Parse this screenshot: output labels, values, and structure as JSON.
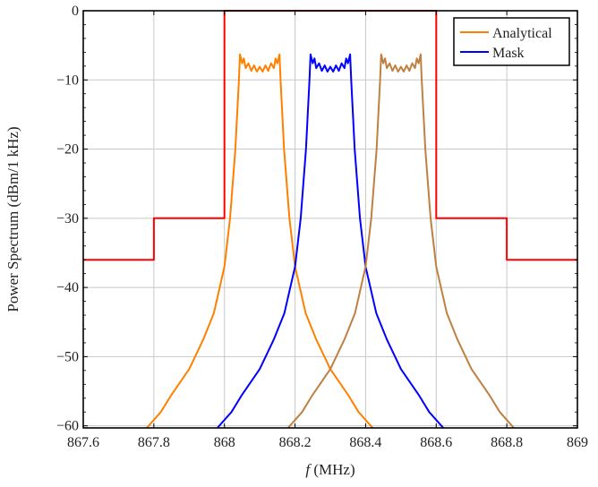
{
  "chart_data": {
    "type": "line",
    "title": "",
    "xlabel": "f (MHz)",
    "ylabel": "Power Spectrum (dBm/1 kHz)",
    "xlim": [
      867.6,
      869
    ],
    "ylim": [
      -60.3,
      0
    ],
    "xticks": [
      "867.6",
      "867.8",
      "868",
      "868.2",
      "868.4",
      "868.6",
      "868.8",
      "869"
    ],
    "xtick_values": [
      867.6,
      867.8,
      868,
      868.2,
      868.4,
      868.6,
      868.8,
      869
    ],
    "yticks": [
      "0",
      "−10",
      "−20",
      "−30",
      "−40",
      "−50",
      "−60"
    ],
    "ytick_values": [
      0,
      -10,
      -20,
      -30,
      -40,
      -50,
      -60
    ],
    "grid": true,
    "legend_position": "top-right",
    "legend": [
      {
        "label": "Analytical",
        "color": "#ff8000"
      },
      {
        "label": "Mask",
        "color": "#0000ff"
      }
    ],
    "series": [
      {
        "name": "Analytical",
        "color": "#ff8000",
        "x": [
          867.78,
          867.82,
          867.85,
          867.9,
          867.94,
          867.97,
          868.0,
          868.016,
          868.031,
          868.041,
          868.044,
          868.05,
          868.055,
          868.06,
          868.068,
          868.076,
          868.084,
          868.092,
          868.1,
          868.108,
          868.116,
          868.124,
          868.132,
          868.14,
          868.145,
          868.15,
          868.156,
          868.159,
          868.169,
          868.184,
          868.2,
          868.23,
          868.26,
          868.3,
          868.35,
          868.38,
          868.42
        ],
        "y": [
          -60.3,
          -58,
          -55.5,
          -51.8,
          -47.5,
          -43.7,
          -37,
          -30,
          -20,
          -10,
          -6.3,
          -7.6,
          -6.9,
          -8.3,
          -7.6,
          -8.7,
          -7.9,
          -8.8,
          -8.1,
          -8.8,
          -7.9,
          -8.7,
          -7.6,
          -8.3,
          -6.9,
          -7.6,
          -6.3,
          -10,
          -20,
          -30,
          -37,
          -43.7,
          -47.5,
          -51.8,
          -55.5,
          -58,
          -60.3
        ]
      },
      {
        "name": "Mask",
        "color": "#0000ff",
        "x": [
          867.98,
          868.02,
          868.05,
          868.1,
          868.14,
          868.17,
          868.2,
          868.216,
          868.231,
          868.241,
          868.244,
          868.25,
          868.255,
          868.26,
          868.268,
          868.276,
          868.284,
          868.292,
          868.3,
          868.308,
          868.316,
          868.324,
          868.332,
          868.34,
          868.345,
          868.35,
          868.356,
          868.359,
          868.369,
          868.384,
          868.4,
          868.43,
          868.46,
          868.5,
          868.55,
          868.58,
          868.62
        ],
        "y": [
          -60.3,
          -58,
          -55.5,
          -51.8,
          -47.5,
          -43.7,
          -37,
          -30,
          -20,
          -10,
          -6.3,
          -7.6,
          -6.9,
          -8.3,
          -7.6,
          -8.7,
          -7.9,
          -8.8,
          -8.1,
          -8.8,
          -7.9,
          -8.7,
          -7.6,
          -8.3,
          -6.9,
          -7.6,
          -6.3,
          -10,
          -20,
          -30,
          -37,
          -43.7,
          -47.5,
          -51.8,
          -55.5,
          -58,
          -60.3
        ]
      },
      {
        "color": "#bf8040",
        "x": [
          868.18,
          868.22,
          868.25,
          868.3,
          868.34,
          868.37,
          868.4,
          868.416,
          868.431,
          868.441,
          868.444,
          868.45,
          868.455,
          868.46,
          868.468,
          868.476,
          868.484,
          868.492,
          868.5,
          868.508,
          868.516,
          868.524,
          868.532,
          868.54,
          868.545,
          868.55,
          868.556,
          868.559,
          868.569,
          868.584,
          868.6,
          868.63,
          868.66,
          868.7,
          868.75,
          868.78,
          868.82
        ],
        "y": [
          -60.3,
          -58,
          -55.5,
          -51.8,
          -47.5,
          -43.7,
          -37,
          -30,
          -20,
          -10,
          -6.3,
          -7.6,
          -6.9,
          -8.3,
          -7.6,
          -8.7,
          -7.9,
          -8.8,
          -8.1,
          -8.8,
          -7.9,
          -8.7,
          -7.6,
          -8.3,
          -6.9,
          -7.6,
          -6.3,
          -10,
          -20,
          -30,
          -37,
          -43.7,
          -47.5,
          -51.8,
          -55.5,
          -58,
          -60.3
        ]
      },
      {
        "color": "#ff0000",
        "step": true,
        "x": [
          867.6,
          867.8,
          867.8,
          868.0,
          868.0,
          868.6,
          868.6,
          868.8,
          868.8,
          869.0
        ],
        "y": [
          -36,
          -36,
          -30,
          -30,
          0,
          0,
          -30,
          -30,
          -36,
          -36
        ]
      }
    ]
  }
}
